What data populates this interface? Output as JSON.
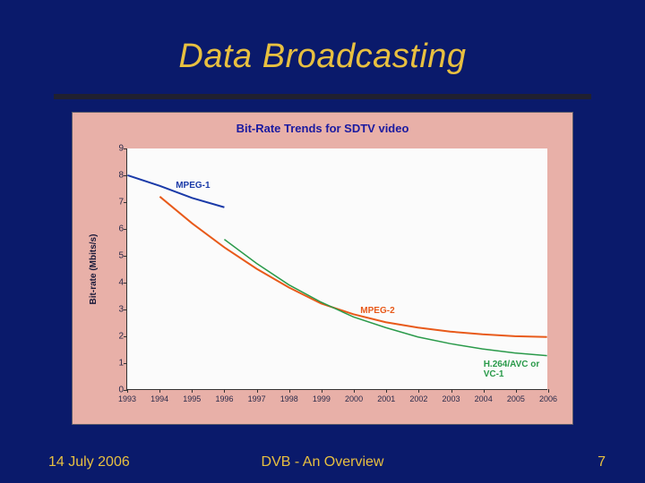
{
  "slide": {
    "background_color": "#0a1a6b",
    "title": "Data Broadcasting",
    "title_color": "#e8c040",
    "title_fontsize": 38,
    "divider_color": "#202030"
  },
  "chart": {
    "type": "line",
    "background_color": "#e8b0a8",
    "plot_background_color": "#fbfbfb",
    "title": "Bit-Rate Trends for SDTV video",
    "title_color": "#1a1aa0",
    "title_fontsize": 13,
    "ylabel": "Bit-rate (Mbits/s)",
    "ylim": [
      0,
      9
    ],
    "ytick_step": 1,
    "xlim": [
      1993,
      2006
    ],
    "xticks": [
      1993,
      1994,
      1995,
      1996,
      1997,
      1998,
      1999,
      2000,
      2001,
      2002,
      2003,
      2004,
      2005,
      2006
    ],
    "axis_color": "#333333",
    "tick_fontsize": 10,
    "tick_color": "#2a2a4a",
    "series": [
      {
        "name": "MPEG-1",
        "color": "#1a3aa8",
        "line_width": 2,
        "label_pos": {
          "x": 1994.5,
          "y": 7.8
        },
        "data": [
          {
            "x": 1993,
            "y": 8.0
          },
          {
            "x": 1994,
            "y": 7.6
          },
          {
            "x": 1995,
            "y": 7.15
          },
          {
            "x": 1996,
            "y": 6.8
          }
        ]
      },
      {
        "name": "MPEG-2",
        "color": "#e85a1a",
        "line_width": 2,
        "label_pos": {
          "x": 2000.2,
          "y": 3.15
        },
        "data": [
          {
            "x": 1994,
            "y": 7.2
          },
          {
            "x": 1995,
            "y": 6.2
          },
          {
            "x": 1996,
            "y": 5.3
          },
          {
            "x": 1997,
            "y": 4.5
          },
          {
            "x": 1998,
            "y": 3.8
          },
          {
            "x": 1999,
            "y": 3.2
          },
          {
            "x": 2000,
            "y": 2.8
          },
          {
            "x": 2001,
            "y": 2.5
          },
          {
            "x": 2002,
            "y": 2.3
          },
          {
            "x": 2003,
            "y": 2.15
          },
          {
            "x": 2004,
            "y": 2.05
          },
          {
            "x": 2005,
            "y": 1.98
          },
          {
            "x": 2006,
            "y": 1.95
          }
        ]
      },
      {
        "name": "H.264/AVC or VC-1",
        "color": "#2a9a4a",
        "line_width": 1.5,
        "label_pos": {
          "x": 2004,
          "y": 1.15
        },
        "data": [
          {
            "x": 1996,
            "y": 5.6
          },
          {
            "x": 1997,
            "y": 4.7
          },
          {
            "x": 1998,
            "y": 3.9
          },
          {
            "x": 1999,
            "y": 3.25
          },
          {
            "x": 2000,
            "y": 2.7
          },
          {
            "x": 2001,
            "y": 2.3
          },
          {
            "x": 2002,
            "y": 1.95
          },
          {
            "x": 2003,
            "y": 1.7
          },
          {
            "x": 2004,
            "y": 1.5
          },
          {
            "x": 2005,
            "y": 1.35
          },
          {
            "x": 2006,
            "y": 1.25
          }
        ]
      }
    ]
  },
  "footer": {
    "date": "14 July 2006",
    "center": "DVB - An Overview",
    "page": "7",
    "text_color": "#e8c040",
    "fontsize": 16
  }
}
